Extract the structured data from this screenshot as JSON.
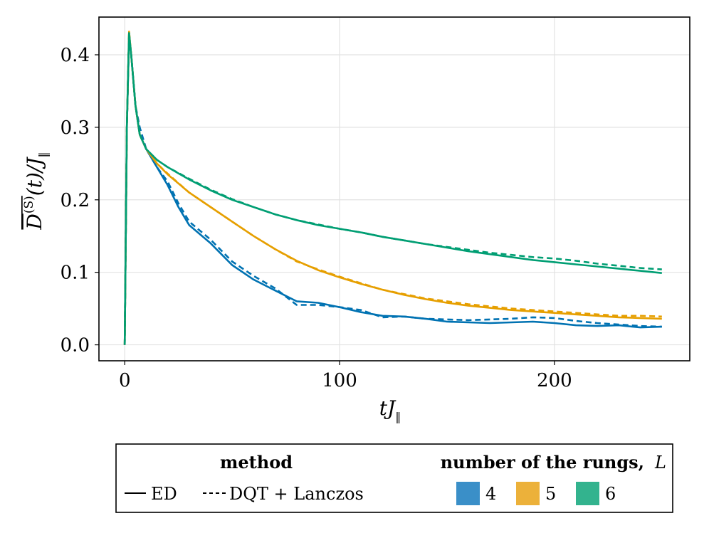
{
  "chart_data": {
    "type": "line",
    "xlabel": "tJ‖",
    "ylabel": "D̅⁽ˢ⁾(t)/J‖",
    "xlim": [
      -12,
      263
    ],
    "ylim": [
      -0.022,
      0.452
    ],
    "x_ticks": [
      {
        "value": 0,
        "label": "0"
      },
      {
        "value": 100,
        "label": "100"
      },
      {
        "value": 200,
        "label": "200"
      }
    ],
    "y_ticks": [
      {
        "value": 0.0,
        "label": "0.0"
      },
      {
        "value": 0.1,
        "label": "0.1"
      },
      {
        "value": 0.2,
        "label": "0.2"
      },
      {
        "value": 0.3,
        "label": "0.3"
      },
      {
        "value": 0.4,
        "label": "0.4"
      }
    ],
    "grid": true,
    "legend": {
      "placement": "bottom",
      "method_title": "method",
      "methods": [
        {
          "label": "ED",
          "style": "solid"
        },
        {
          "label": "DQT + Lanczos",
          "style": "dashed"
        }
      ],
      "rungs_title": "number of the rungs,",
      "rungs_title_symbol": "L",
      "rungs": [
        {
          "label": "4",
          "color": "#0072b2"
        },
        {
          "label": "5",
          "color": "#e69f00"
        },
        {
          "label": "6",
          "color": "#009e73"
        }
      ]
    },
    "series": [
      {
        "L": "4",
        "method": "ED",
        "color": "#0072b2",
        "style": "solid",
        "points": [
          [
            0,
            0
          ],
          [
            1,
            0.3
          ],
          [
            2,
            0.425
          ],
          [
            3,
            0.4
          ],
          [
            5,
            0.33
          ],
          [
            7,
            0.29
          ],
          [
            10,
            0.27
          ],
          [
            15,
            0.245
          ],
          [
            20,
            0.22
          ],
          [
            25,
            0.19
          ],
          [
            30,
            0.165
          ],
          [
            40,
            0.14
          ],
          [
            50,
            0.11
          ],
          [
            60,
            0.09
          ],
          [
            70,
            0.075
          ],
          [
            80,
            0.06
          ],
          [
            90,
            0.058
          ],
          [
            100,
            0.052
          ],
          [
            110,
            0.045
          ],
          [
            120,
            0.04
          ],
          [
            130,
            0.039
          ],
          [
            140,
            0.036
          ],
          [
            150,
            0.032
          ],
          [
            160,
            0.031
          ],
          [
            170,
            0.03
          ],
          [
            180,
            0.031
          ],
          [
            190,
            0.032
          ],
          [
            200,
            0.03
          ],
          [
            210,
            0.027
          ],
          [
            220,
            0.026
          ],
          [
            230,
            0.027
          ],
          [
            240,
            0.024
          ],
          [
            250,
            0.025
          ]
        ]
      },
      {
        "L": "4",
        "method": "DQT + Lanczos",
        "color": "#0072b2",
        "style": "dashed",
        "points": [
          [
            0,
            0
          ],
          [
            1,
            0.3
          ],
          [
            2,
            0.425
          ],
          [
            3,
            0.4
          ],
          [
            5,
            0.33
          ],
          [
            7,
            0.3
          ],
          [
            10,
            0.27
          ],
          [
            15,
            0.245
          ],
          [
            20,
            0.225
          ],
          [
            25,
            0.195
          ],
          [
            30,
            0.17
          ],
          [
            40,
            0.145
          ],
          [
            50,
            0.115
          ],
          [
            60,
            0.095
          ],
          [
            70,
            0.078
          ],
          [
            80,
            0.055
          ],
          [
            90,
            0.055
          ],
          [
            100,
            0.052
          ],
          [
            110,
            0.048
          ],
          [
            120,
            0.038
          ],
          [
            130,
            0.039
          ],
          [
            140,
            0.036
          ],
          [
            150,
            0.035
          ],
          [
            160,
            0.034
          ],
          [
            170,
            0.035
          ],
          [
            180,
            0.036
          ],
          [
            190,
            0.038
          ],
          [
            200,
            0.037
          ],
          [
            210,
            0.033
          ],
          [
            220,
            0.03
          ],
          [
            230,
            0.028
          ],
          [
            240,
            0.026
          ],
          [
            250,
            0.025
          ]
        ]
      },
      {
        "L": "5",
        "method": "ED",
        "color": "#e69f00",
        "style": "solid",
        "points": [
          [
            0,
            0
          ],
          [
            1,
            0.3
          ],
          [
            2,
            0.432
          ],
          [
            3,
            0.4
          ],
          [
            5,
            0.33
          ],
          [
            7,
            0.29
          ],
          [
            10,
            0.27
          ],
          [
            15,
            0.25
          ],
          [
            20,
            0.235
          ],
          [
            30,
            0.21
          ],
          [
            40,
            0.19
          ],
          [
            50,
            0.17
          ],
          [
            60,
            0.15
          ],
          [
            70,
            0.132
          ],
          [
            80,
            0.116
          ],
          [
            90,
            0.103
          ],
          [
            100,
            0.093
          ],
          [
            110,
            0.084
          ],
          [
            120,
            0.076
          ],
          [
            130,
            0.069
          ],
          [
            140,
            0.063
          ],
          [
            150,
            0.058
          ],
          [
            160,
            0.054
          ],
          [
            170,
            0.051
          ],
          [
            180,
            0.048
          ],
          [
            190,
            0.046
          ],
          [
            200,
            0.044
          ],
          [
            210,
            0.042
          ],
          [
            220,
            0.04
          ],
          [
            230,
            0.038
          ],
          [
            240,
            0.037
          ],
          [
            250,
            0.036
          ]
        ]
      },
      {
        "L": "5",
        "method": "DQT + Lanczos",
        "color": "#e69f00",
        "style": "dashed",
        "points": [
          [
            0,
            0
          ],
          [
            1,
            0.3
          ],
          [
            2,
            0.432
          ],
          [
            3,
            0.4
          ],
          [
            5,
            0.33
          ],
          [
            7,
            0.29
          ],
          [
            10,
            0.27
          ],
          [
            15,
            0.25
          ],
          [
            20,
            0.236
          ],
          [
            30,
            0.21
          ],
          [
            40,
            0.19
          ],
          [
            50,
            0.17
          ],
          [
            60,
            0.15
          ],
          [
            70,
            0.132
          ],
          [
            80,
            0.115
          ],
          [
            90,
            0.104
          ],
          [
            100,
            0.094
          ],
          [
            110,
            0.085
          ],
          [
            120,
            0.076
          ],
          [
            130,
            0.07
          ],
          [
            140,
            0.064
          ],
          [
            150,
            0.06
          ],
          [
            160,
            0.056
          ],
          [
            170,
            0.053
          ],
          [
            180,
            0.05
          ],
          [
            190,
            0.048
          ],
          [
            200,
            0.046
          ],
          [
            210,
            0.044
          ],
          [
            220,
            0.042
          ],
          [
            230,
            0.04
          ],
          [
            240,
            0.04
          ],
          [
            250,
            0.039
          ]
        ]
      },
      {
        "L": "6",
        "method": "ED",
        "color": "#009e73",
        "style": "solid",
        "points": [
          [
            0,
            0
          ],
          [
            1,
            0.3
          ],
          [
            2,
            0.43
          ],
          [
            3,
            0.4
          ],
          [
            5,
            0.33
          ],
          [
            7,
            0.29
          ],
          [
            10,
            0.27
          ],
          [
            15,
            0.255
          ],
          [
            20,
            0.245
          ],
          [
            30,
            0.228
          ],
          [
            40,
            0.213
          ],
          [
            50,
            0.2
          ],
          [
            60,
            0.19
          ],
          [
            70,
            0.18
          ],
          [
            80,
            0.172
          ],
          [
            90,
            0.165
          ],
          [
            100,
            0.16
          ],
          [
            110,
            0.155
          ],
          [
            120,
            0.149
          ],
          [
            130,
            0.144
          ],
          [
            140,
            0.139
          ],
          [
            150,
            0.134
          ],
          [
            160,
            0.129
          ],
          [
            170,
            0.125
          ],
          [
            180,
            0.121
          ],
          [
            190,
            0.117
          ],
          [
            200,
            0.114
          ],
          [
            210,
            0.111
          ],
          [
            220,
            0.108
          ],
          [
            230,
            0.105
          ],
          [
            240,
            0.102
          ],
          [
            250,
            0.099
          ]
        ]
      },
      {
        "L": "6",
        "method": "DQT + Lanczos",
        "color": "#009e73",
        "style": "dashed",
        "points": [
          [
            0,
            0
          ],
          [
            1,
            0.3
          ],
          [
            2,
            0.43
          ],
          [
            3,
            0.4
          ],
          [
            5,
            0.33
          ],
          [
            7,
            0.29
          ],
          [
            10,
            0.27
          ],
          [
            15,
            0.255
          ],
          [
            20,
            0.245
          ],
          [
            30,
            0.229
          ],
          [
            40,
            0.214
          ],
          [
            50,
            0.201
          ],
          [
            60,
            0.19
          ],
          [
            70,
            0.18
          ],
          [
            80,
            0.172
          ],
          [
            90,
            0.166
          ],
          [
            100,
            0.16
          ],
          [
            110,
            0.155
          ],
          [
            120,
            0.149
          ],
          [
            130,
            0.144
          ],
          [
            140,
            0.139
          ],
          [
            150,
            0.135
          ],
          [
            160,
            0.131
          ],
          [
            170,
            0.127
          ],
          [
            180,
            0.124
          ],
          [
            190,
            0.121
          ],
          [
            200,
            0.119
          ],
          [
            210,
            0.116
          ],
          [
            220,
            0.112
          ],
          [
            230,
            0.109
          ],
          [
            240,
            0.106
          ],
          [
            250,
            0.104
          ]
        ]
      }
    ]
  }
}
